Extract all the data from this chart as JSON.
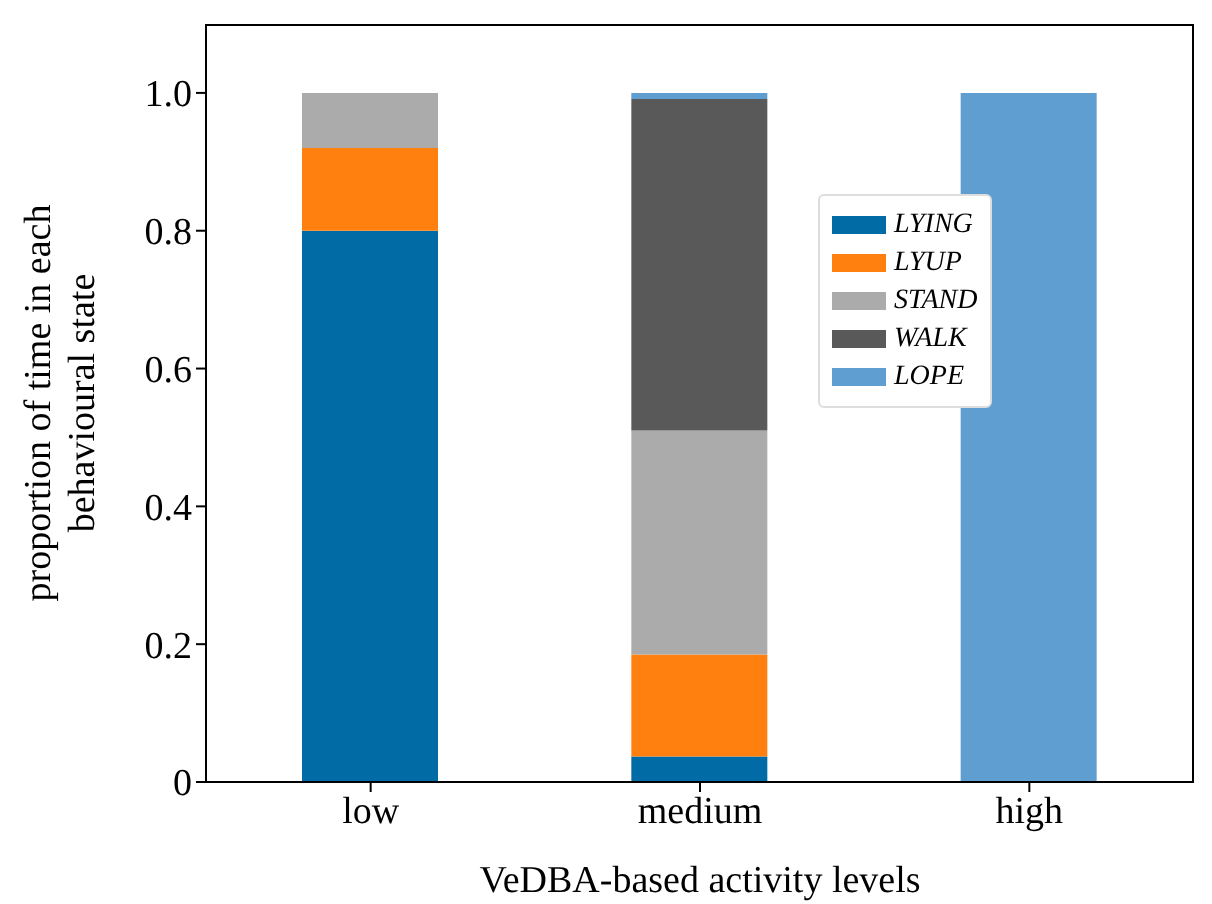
{
  "chart_data": {
    "type": "bar",
    "stacked": true,
    "xlabel": "VeDBA-based activity levels",
    "ylabel": "proportion of time in each behavioural state",
    "categories": [
      "low",
      "medium",
      "high"
    ],
    "series": [
      {
        "name": "LYING",
        "color": "#006ba4",
        "values": [
          0.8,
          0.037,
          0
        ]
      },
      {
        "name": "LYUP",
        "color": "#ff800e",
        "values": [
          0.12,
          0.148,
          0
        ]
      },
      {
        "name": "STAND",
        "color": "#ababab",
        "values": [
          0.08,
          0.325,
          0
        ]
      },
      {
        "name": "WALK",
        "color": "#595959",
        "values": [
          0,
          0.481,
          0
        ]
      },
      {
        "name": "LOPE",
        "color": "#5f9ed1",
        "values": [
          0,
          0.009,
          1
        ]
      }
    ],
    "ylim": [
      0,
      1.1
    ],
    "yticks": [
      0,
      0.2,
      0.4,
      0.6,
      0.8,
      {
        "value": 1,
        "label": "1.0"
      }
    ],
    "grid": false,
    "legend": "right"
  }
}
